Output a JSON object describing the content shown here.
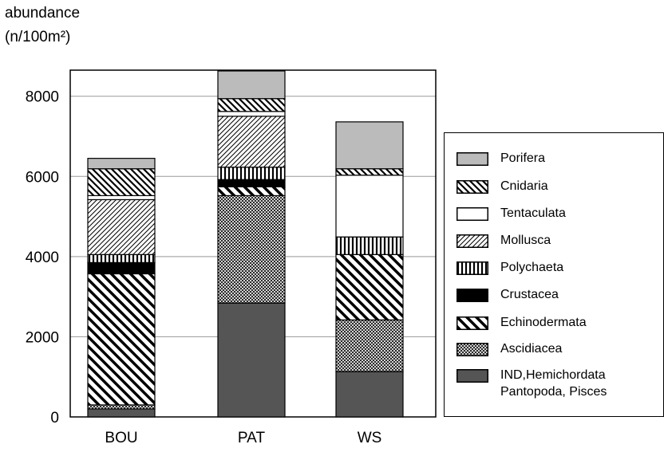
{
  "chart_data": {
    "type": "stacked-bar",
    "y_label": [
      "abundance",
      "(n/100m²)"
    ],
    "categories": [
      "BOU",
      "PAT",
      "WS"
    ],
    "ylim": [
      0,
      8650
    ],
    "yticks": [
      0,
      2000,
      4000,
      6000,
      8000
    ],
    "grid": true,
    "legend": "right",
    "series": [
      {
        "name": "IND,Hemichordata Pantopoda, Pisces",
        "color": "#555555",
        "pattern": "solid",
        "values": [
          200,
          2840,
          1130
        ]
      },
      {
        "name": "Ascidiacea",
        "color": "#000000",
        "pattern": "dots",
        "values": [
          100,
          2680,
          1290
        ]
      },
      {
        "name": "Echinodermata",
        "color": "#000000",
        "pattern": "backslash",
        "values": [
          3270,
          220,
          1630
        ]
      },
      {
        "name": "Crustacea",
        "color": "#000000",
        "pattern": "solid",
        "values": [
          280,
          180,
          0
        ]
      },
      {
        "name": "Polychaeta",
        "color": "#000000",
        "pattern": "vertical",
        "values": [
          200,
          310,
          440
        ]
      },
      {
        "name": "Mollusca",
        "color": "#000000",
        "pattern": "slash",
        "values": [
          1370,
          1270,
          0
        ]
      },
      {
        "name": "Tentaculata",
        "color": "#ffffff",
        "pattern": "solid",
        "values": [
          100,
          120,
          1540
        ]
      },
      {
        "name": "Cnidaria",
        "color": "#000000",
        "pattern": "dense-backslash",
        "values": [
          670,
          320,
          160
        ]
      },
      {
        "name": "Porifera",
        "color": "#bbbbbb",
        "pattern": "solid",
        "values": [
          260,
          690,
          1170
        ]
      }
    ]
  }
}
